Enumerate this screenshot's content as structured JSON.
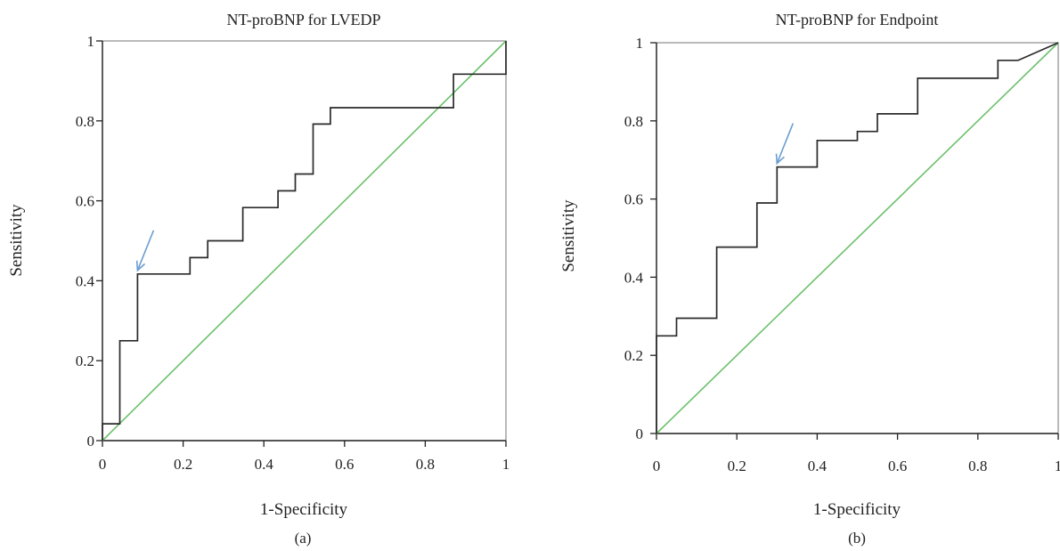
{
  "colors": {
    "roc_line": "#2b2b2b",
    "reference_line": "#6cc06c",
    "arrow": "#6b9ed1",
    "frame": "#8c8c8c",
    "axis": "#222222"
  },
  "chart_data": [
    {
      "type": "line",
      "panel": "(a)",
      "title": "NT-proBNP for LVEDP",
      "xlabel": "1-Specificity",
      "ylabel": "Sensitivity",
      "xlim": [
        0,
        1
      ],
      "ylim": [
        0,
        1
      ],
      "xticks": [
        "0",
        "0.2",
        "0.4",
        "0.6",
        "0.8",
        "1"
      ],
      "yticks": [
        "0",
        "0.2",
        "0.4",
        "0.6",
        "0.8",
        "1"
      ],
      "series": [
        {
          "role": "roc",
          "x": [
            0,
            0,
            0.043,
            0.043,
            0.087,
            0.087,
            0.217,
            0.217,
            0.261,
            0.261,
            0.348,
            0.348,
            0.435,
            0.435,
            0.478,
            0.478,
            0.522,
            0.522,
            0.565,
            0.565,
            0.87,
            0.87,
            1,
            1
          ],
          "y": [
            0,
            0.042,
            0.042,
            0.25,
            0.25,
            0.417,
            0.417,
            0.458,
            0.458,
            0.5,
            0.5,
            0.583,
            0.583,
            0.625,
            0.625,
            0.667,
            0.667,
            0.792,
            0.792,
            0.833,
            0.833,
            0.917,
            0.917,
            1
          ]
        },
        {
          "role": "reference",
          "x": [
            0,
            1
          ],
          "y": [
            0,
            1
          ]
        }
      ],
      "annotation": {
        "type": "arrow",
        "x": 0.087,
        "y": 0.417
      }
    },
    {
      "type": "line",
      "panel": "(b)",
      "title": "NT-proBNP for Endpoint",
      "xlabel": "1-Specificity",
      "ylabel": "Sensitivity",
      "xlim": [
        0,
        1
      ],
      "ylim": [
        0,
        1
      ],
      "xticks": [
        "0",
        "0.2",
        "0.4",
        "0.6",
        "0.8",
        "1"
      ],
      "yticks": [
        "0",
        "0.2",
        "0.4",
        "0.6",
        "0.8",
        "1"
      ],
      "series": [
        {
          "role": "roc",
          "x": [
            0,
            0,
            0.05,
            0.05,
            0.15,
            0.15,
            0.25,
            0.25,
            0.3,
            0.3,
            0.4,
            0.4,
            0.5,
            0.5,
            0.55,
            0.55,
            0.65,
            0.65,
            0.85,
            0.85,
            0.9,
            1
          ],
          "y": [
            0,
            0.25,
            0.25,
            0.295,
            0.295,
            0.477,
            0.477,
            0.59,
            0.59,
            0.682,
            0.682,
            0.75,
            0.75,
            0.773,
            0.773,
            0.818,
            0.818,
            0.909,
            0.909,
            0.955,
            0.955,
            1
          ]
        },
        {
          "role": "reference",
          "x": [
            0,
            1
          ],
          "y": [
            0,
            1
          ]
        }
      ],
      "annotation": {
        "type": "arrow",
        "x": 0.3,
        "y": 0.682
      }
    }
  ]
}
